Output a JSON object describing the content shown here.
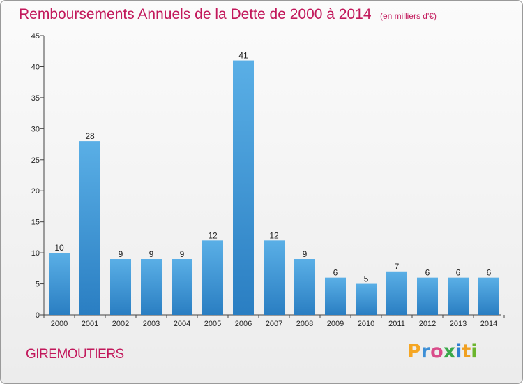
{
  "header": {
    "title": "Remboursements Annuels de la Dette de 2000 à 2014",
    "subtitle": "(en milliers d'€)"
  },
  "footer": {
    "commune": "GIREMOUTIERS",
    "logo": {
      "text": "Proxiti",
      "letter_colors": [
        "#f5a623",
        "#3d8fd6",
        "#d94c8a",
        "#3aa84a",
        "#2e7fd1",
        "#f0a020",
        "#6bb52d"
      ]
    }
  },
  "chart_data": {
    "type": "bar",
    "title": "Remboursements Annuels de la Dette de 2000 à 2014",
    "subtitle": "(en milliers d'€)",
    "categories": [
      "2000",
      "2001",
      "2002",
      "2003",
      "2004",
      "2005",
      "2006",
      "2007",
      "2008",
      "2009",
      "2010",
      "2011",
      "2012",
      "2013",
      "2014"
    ],
    "values": [
      10,
      28,
      9,
      9,
      9,
      12,
      41,
      12,
      9,
      6,
      5,
      7,
      6,
      6,
      6
    ],
    "ylim": [
      0,
      45
    ],
    "yticks": [
      0,
      5,
      10,
      15,
      20,
      25,
      30,
      35,
      40,
      45
    ],
    "xlabel": "",
    "ylabel": "",
    "grid": false,
    "colors": {
      "bar_top": "#5aafe6",
      "bar_bottom": "#2a7ec2",
      "axis": "#444444"
    }
  }
}
